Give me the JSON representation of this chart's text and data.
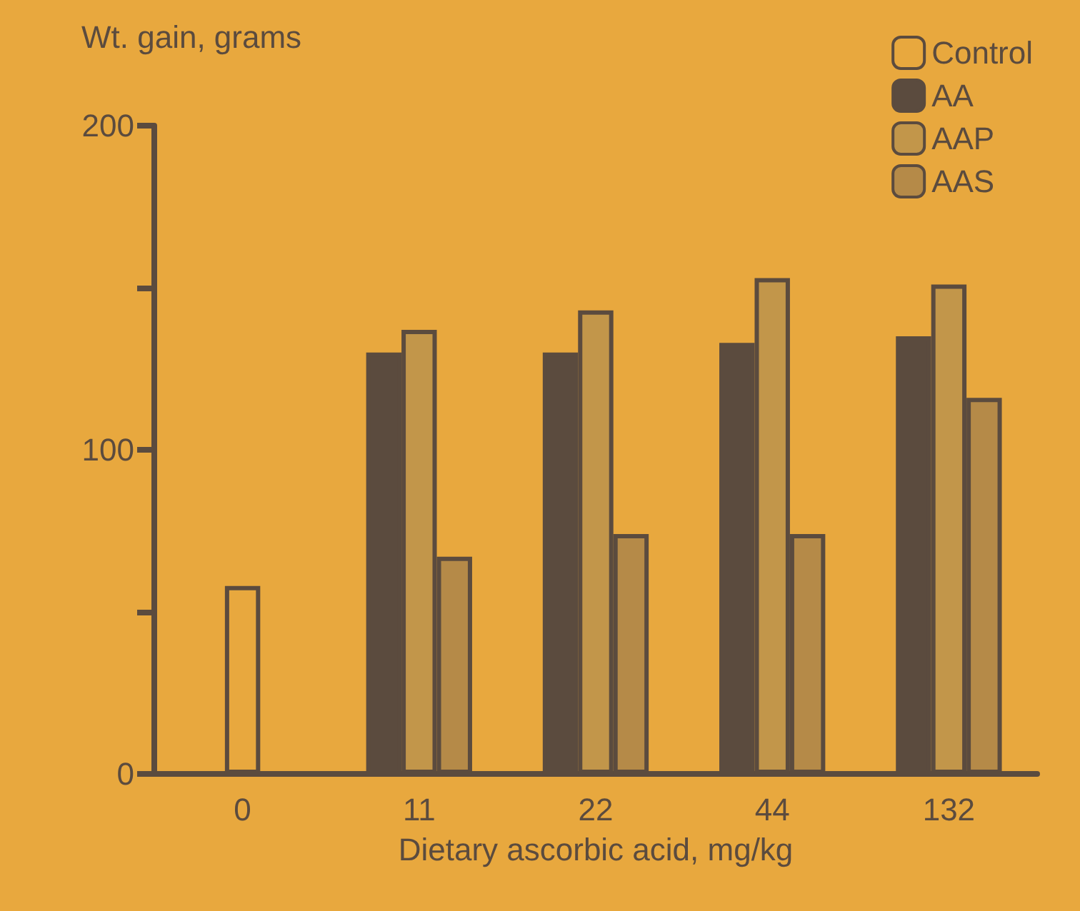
{
  "chart_data": {
    "type": "bar",
    "xlabel": "Dietary ascorbic acid, mg/kg",
    "ylabel": "Wt. gain, grams",
    "categories": [
      "0",
      "11",
      "22",
      "44",
      "132"
    ],
    "series": [
      {
        "name": "Control",
        "color": "#e8a83e",
        "values": [
          58,
          null,
          null,
          null,
          null
        ]
      },
      {
        "name": "AA",
        "color": "#5b4b3e",
        "values": [
          null,
          130,
          130,
          133,
          135
        ]
      },
      {
        "name": "AAP",
        "color": "#c2964a",
        "values": [
          null,
          137,
          143,
          153,
          151
        ]
      },
      {
        "name": "AAS",
        "color": "#b58a48",
        "values": [
          null,
          67,
          74,
          74,
          116
        ]
      }
    ],
    "ylim": [
      0,
      200
    ],
    "yticks": [
      0,
      {
        "value": 50,
        "label": null
      },
      100,
      {
        "value": 150,
        "label": null
      },
      200
    ],
    "grid": false,
    "legend": "top right"
  }
}
